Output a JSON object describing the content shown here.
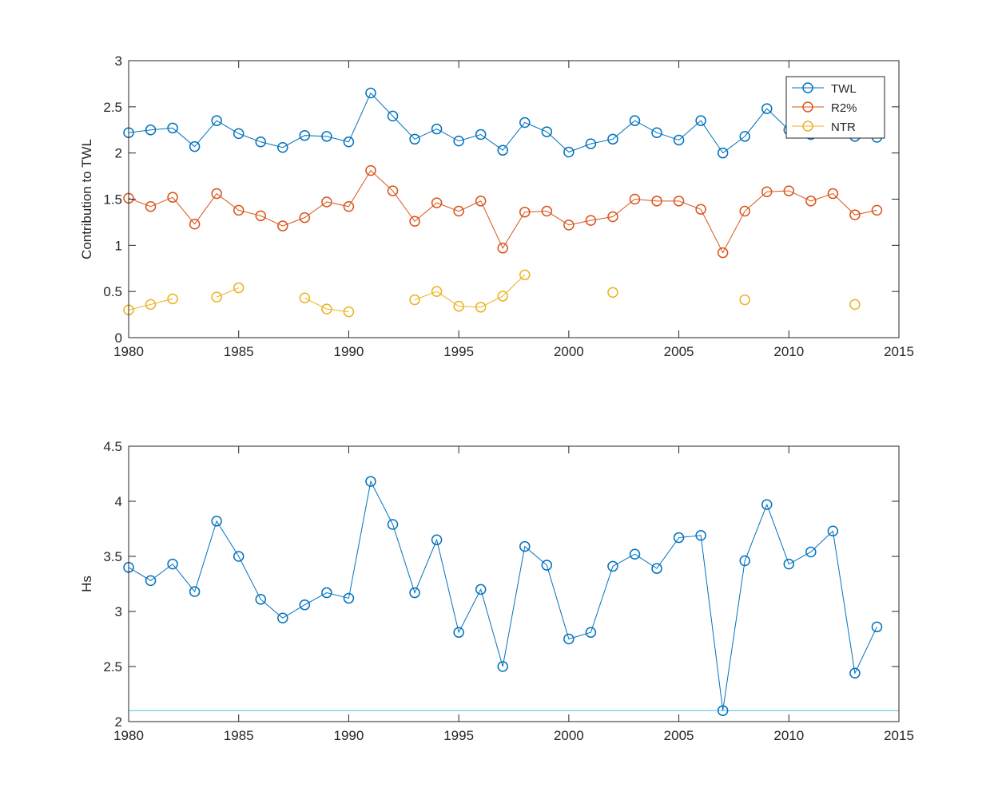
{
  "chart_data": [
    {
      "type": "line",
      "title": "",
      "xlabel": "",
      "ylabel": "Contribution to TWL",
      "xlim": [
        1980,
        2015
      ],
      "ylim": [
        0,
        3
      ],
      "xticks": [
        "1980",
        "1985",
        "1990",
        "1995",
        "2000",
        "2005",
        "2010",
        "2015"
      ],
      "yticks": [
        "0",
        "0.5",
        "1",
        "1.5",
        "2",
        "2.5",
        "3"
      ],
      "grid": false,
      "legend_position": "top-right",
      "marker": "circle",
      "x": [
        1980,
        1981,
        1982,
        1983,
        1984,
        1985,
        1986,
        1987,
        1988,
        1989,
        1990,
        1991,
        1992,
        1993,
        1994,
        1995,
        1996,
        1997,
        1998,
        1999,
        2000,
        2001,
        2002,
        2003,
        2004,
        2005,
        2006,
        2007,
        2008,
        2009,
        2010,
        2011,
        2012,
        2013,
        2014
      ],
      "series": [
        {
          "name": "TWL",
          "color": "#0072BD",
          "values": [
            2.22,
            2.25,
            2.27,
            2.07,
            2.35,
            2.21,
            2.12,
            2.06,
            2.19,
            2.18,
            2.12,
            2.65,
            2.4,
            2.15,
            2.26,
            2.13,
            2.2,
            2.03,
            2.33,
            2.23,
            2.01,
            2.1,
            2.15,
            2.35,
            2.22,
            2.14,
            2.35,
            2.0,
            2.18,
            2.48,
            2.25,
            2.2,
            2.3,
            2.18,
            2.17
          ]
        },
        {
          "name": "R2%",
          "color": "#D95319",
          "values": [
            1.51,
            1.42,
            1.52,
            1.23,
            1.56,
            1.38,
            1.32,
            1.21,
            1.3,
            1.47,
            1.42,
            1.81,
            1.59,
            1.26,
            1.46,
            1.37,
            1.48,
            0.97,
            1.36,
            1.37,
            1.22,
            1.27,
            1.31,
            1.5,
            1.48,
            1.48,
            1.39,
            0.92,
            1.37,
            1.58,
            1.59,
            1.48,
            1.56,
            1.33,
            1.38
          ]
        },
        {
          "name": "NTR",
          "color": "#EDB120",
          "values": [
            0.3,
            0.36,
            0.42,
            null,
            0.44,
            0.54,
            null,
            null,
            0.43,
            0.31,
            0.28,
            null,
            null,
            0.41,
            0.5,
            0.34,
            0.33,
            0.45,
            0.68,
            null,
            null,
            null,
            0.49,
            null,
            null,
            null,
            null,
            null,
            0.41,
            null,
            null,
            null,
            null,
            0.36,
            null
          ]
        }
      ]
    },
    {
      "type": "line",
      "title": "",
      "xlabel": "",
      "ylabel": "Hs",
      "xlim": [
        1980,
        2015
      ],
      "ylim": [
        2,
        4.5
      ],
      "xticks": [
        "1980",
        "1985",
        "1990",
        "1995",
        "2000",
        "2005",
        "2010",
        "2015"
      ],
      "yticks": [
        "2",
        "2.5",
        "3",
        "3.5",
        "4",
        "4.5"
      ],
      "grid": false,
      "marker": "circle",
      "reference_line": {
        "y": 2.1,
        "color": "#4DBEEE"
      },
      "x": [
        1980,
        1981,
        1982,
        1983,
        1984,
        1985,
        1986,
        1987,
        1988,
        1989,
        1990,
        1991,
        1992,
        1993,
        1994,
        1995,
        1996,
        1997,
        1998,
        1999,
        2000,
        2001,
        2002,
        2003,
        2004,
        2005,
        2006,
        2007,
        2008,
        2009,
        2010,
        2011,
        2012,
        2013,
        2014
      ],
      "series": [
        {
          "color": "#0072BD",
          "values": [
            3.4,
            3.28,
            3.43,
            3.18,
            3.82,
            3.5,
            3.11,
            2.94,
            3.06,
            3.17,
            3.12,
            4.18,
            3.79,
            3.17,
            3.65,
            2.81,
            3.2,
            2.5,
            3.59,
            3.42,
            2.75,
            2.81,
            3.41,
            3.52,
            3.39,
            3.67,
            3.69,
            2.1,
            3.46,
            3.97,
            3.43,
            3.54,
            3.73,
            2.44,
            2.86
          ]
        }
      ]
    }
  ]
}
